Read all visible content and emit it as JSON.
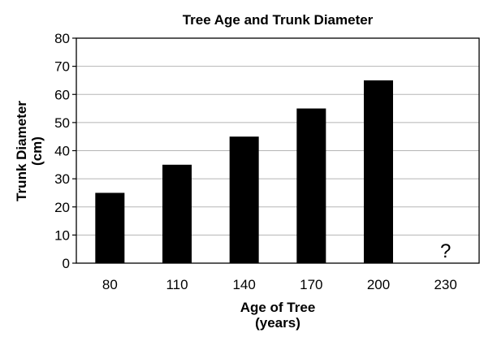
{
  "chart_data": {
    "type": "bar",
    "title": "Tree Age and Trunk Diameter",
    "xlabel_line1": "Age of Tree",
    "xlabel_line2": "(years)",
    "ylabel_line1": "Trunk Diameter",
    "ylabel_line2": "(cm)",
    "categories": [
      "80",
      "110",
      "140",
      "170",
      "200",
      "230"
    ],
    "values": [
      25,
      35,
      45,
      55,
      65,
      null
    ],
    "unknown_marker": "?",
    "unknown_category": "230",
    "ylim": [
      0,
      80
    ],
    "yticks": [
      0,
      10,
      20,
      30,
      40,
      50,
      60,
      70,
      80
    ],
    "ytick_labels": [
      "0",
      "10",
      "20",
      "30",
      "40",
      "50",
      "60",
      "70",
      "80"
    ],
    "grid": true,
    "bar_color": "#000000",
    "grid_color": "#b5b5b5"
  }
}
